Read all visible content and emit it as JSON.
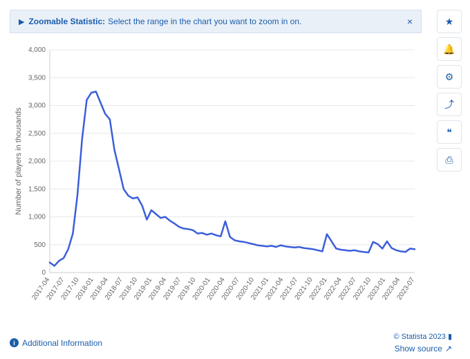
{
  "banner": {
    "arrow": "▶",
    "title": "Zoomable Statistic:",
    "text": "Select the range in the chart you want to zoom in on.",
    "close": "×"
  },
  "toolbar": {
    "items": [
      {
        "name": "star-icon",
        "glyph": "★"
      },
      {
        "name": "bell-icon",
        "glyph": "🔔"
      },
      {
        "name": "gear-icon",
        "glyph": "⚙"
      },
      {
        "name": "share-icon",
        "glyph": "⤴"
      },
      {
        "name": "quote-icon",
        "glyph": "❝"
      },
      {
        "name": "print-icon",
        "glyph": "⎙"
      }
    ]
  },
  "chart": {
    "type": "line",
    "background_color": "#ffffff",
    "grid_color": "#e8e8e8",
    "axis_color": "#cccccc",
    "series_color": "#3b5eda",
    "line_width": 2.5,
    "ylabel": "Number of players in thousands",
    "label_fontsize": 11,
    "tick_fontsize": 10,
    "ylim": [
      0,
      4000
    ],
    "yticks": [
      0,
      500,
      1000,
      1500,
      2000,
      2500,
      3000,
      3500,
      4000
    ],
    "x_labels": [
      "2017-04",
      "2017-07",
      "2017-10",
      "2018-01",
      "2018-04",
      "2018-07",
      "2018-10",
      "2019-01",
      "2019-04",
      "2019-07",
      "2019-10",
      "2020-01",
      "2020-04",
      "2020-07",
      "2020-10",
      "2021-01",
      "2021-04",
      "2021-07",
      "2021-10",
      "2022-01",
      "2022-04",
      "2022-07",
      "2022-10",
      "2023-01",
      "2023-04",
      "2023-07"
    ],
    "values": [
      180,
      120,
      210,
      260,
      420,
      700,
      1400,
      2400,
      3100,
      3230,
      3250,
      3050,
      2850,
      2750,
      2200,
      1850,
      1500,
      1380,
      1330,
      1350,
      1200,
      950,
      1120,
      1050,
      980,
      1000,
      930,
      880,
      820,
      790,
      780,
      760,
      700,
      710,
      680,
      700,
      670,
      650,
      920,
      640,
      580,
      560,
      550,
      530,
      510,
      490,
      480,
      470,
      480,
      460,
      490,
      470,
      460,
      450,
      460,
      440,
      430,
      420,
      400,
      380,
      690,
      560,
      430,
      410,
      400,
      390,
      400,
      380,
      370,
      360,
      550,
      510,
      430,
      560,
      440,
      400,
      380,
      370,
      430,
      420
    ]
  },
  "footer": {
    "additional_info": "Additional Information",
    "copyright": "© Statista 2023",
    "show_source": "Show source"
  }
}
